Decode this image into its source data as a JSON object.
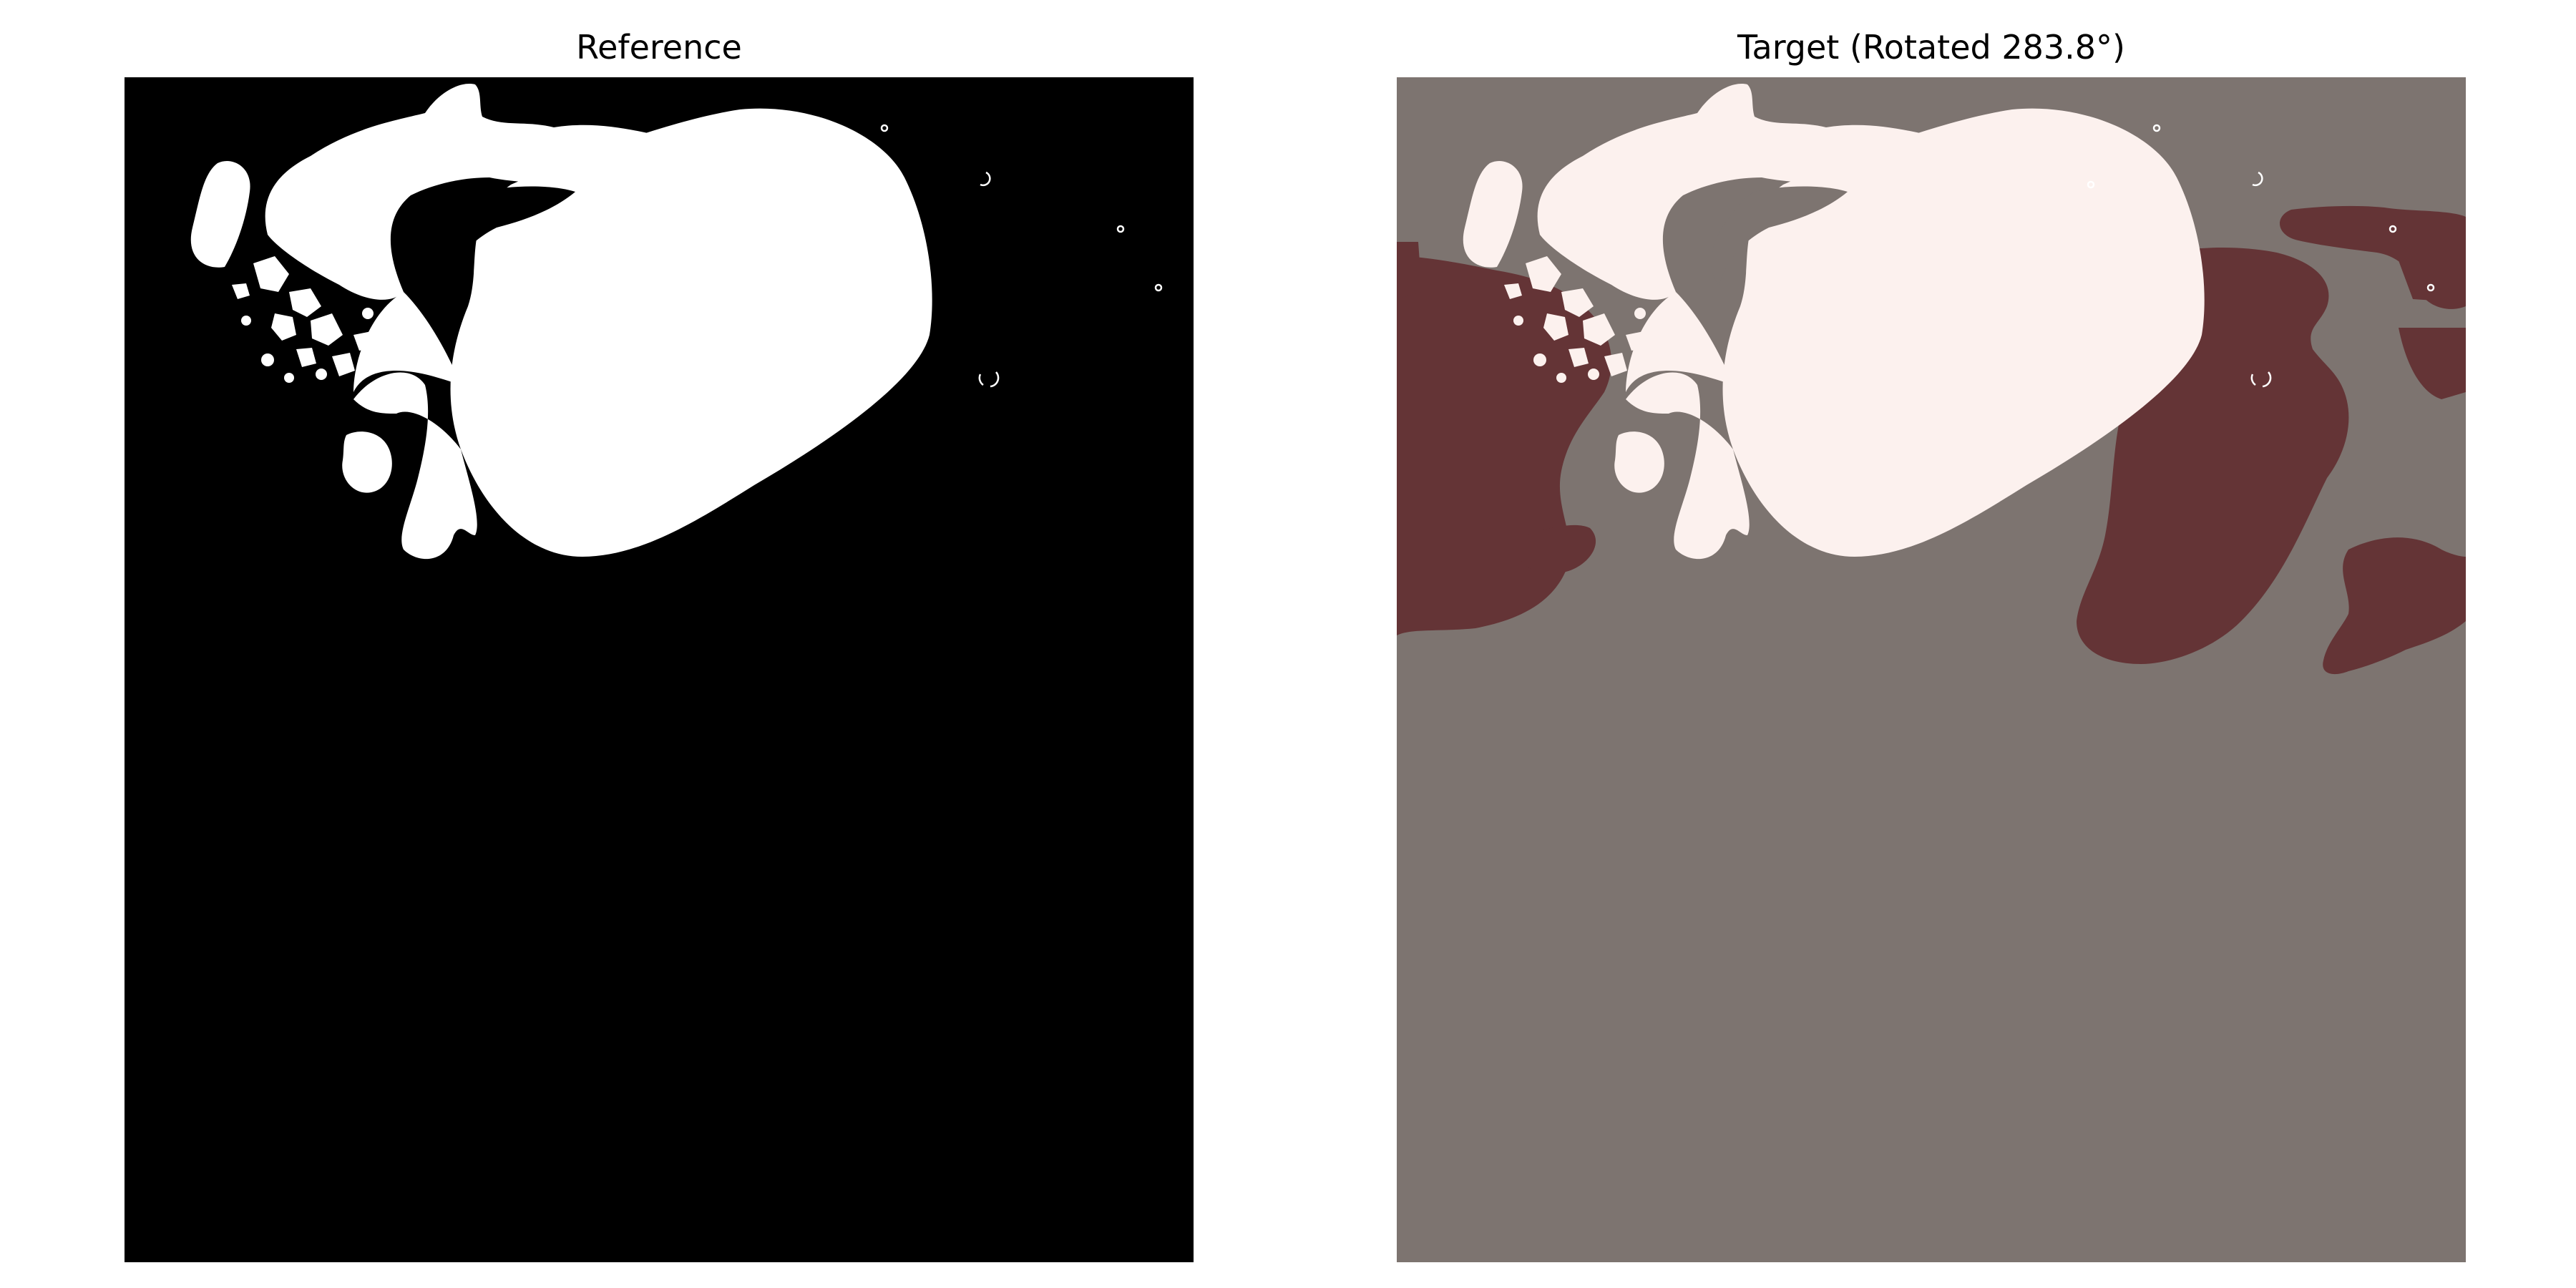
{
  "figure": {
    "reference_title": "Reference",
    "target_title": "Target (Rotated 283.8°)"
  },
  "colors": {
    "reference_background": "#000000",
    "reference_mask": "#ffffff",
    "target_background": "#7d7470",
    "target_reference_overlay": "#fcf1ee",
    "target_rotated_mask": "#643436",
    "target_overlap": "#e6b5b6"
  }
}
